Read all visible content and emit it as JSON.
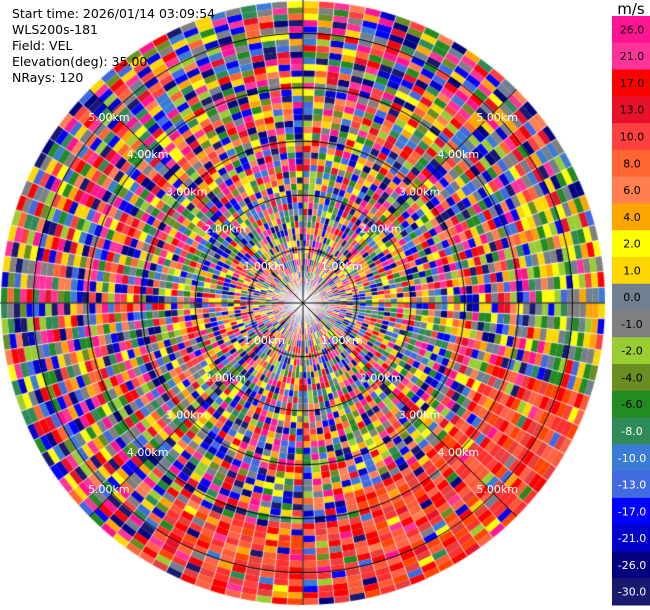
{
  "meta": {
    "start_time": "Start time: 2026/01/14 03:09:54",
    "instrument": "WLS200s-181",
    "field": "Field: VEL",
    "elevation": "Elevation(deg): 35.00",
    "nrays": "NRays: 120"
  },
  "chart_data": {
    "type": "heatmap",
    "projection": "polar-ppi",
    "field": "VEL",
    "nrays": 120,
    "range_rings_km": [
      1,
      2,
      3,
      4,
      5
    ],
    "range_labels": [
      "1.00km",
      "2.00km",
      "3.00km",
      "4.00km",
      "5.00km"
    ],
    "colorbar": {
      "unit": "m/s",
      "ticks": [
        "26.0",
        "21.0",
        "17.0",
        "13.0",
        "10.0",
        "8.0",
        "6.0",
        "4.0",
        "2.0",
        "1.0",
        "0.0",
        "-1.0",
        "-2.0",
        "-4.0",
        "-6.0",
        "-8.0",
        "-10.0",
        "-13.0",
        "-17.0",
        "-21.0",
        "-26.0",
        "-30.0"
      ],
      "colors": [
        "#ff1493",
        "#ff3399",
        "#ff0000",
        "#e8102a",
        "#ff4040",
        "#ff6633",
        "#ff7f50",
        "#ffa500",
        "#ffff00",
        "#ffd700",
        "#708090",
        "#808080",
        "#9acd32",
        "#6b8e23",
        "#228b22",
        "#2e8b57",
        "#3a7bd5",
        "#4169e1",
        "#0000ff",
        "#0000cd",
        "#000080",
        "#191970"
      ]
    }
  }
}
